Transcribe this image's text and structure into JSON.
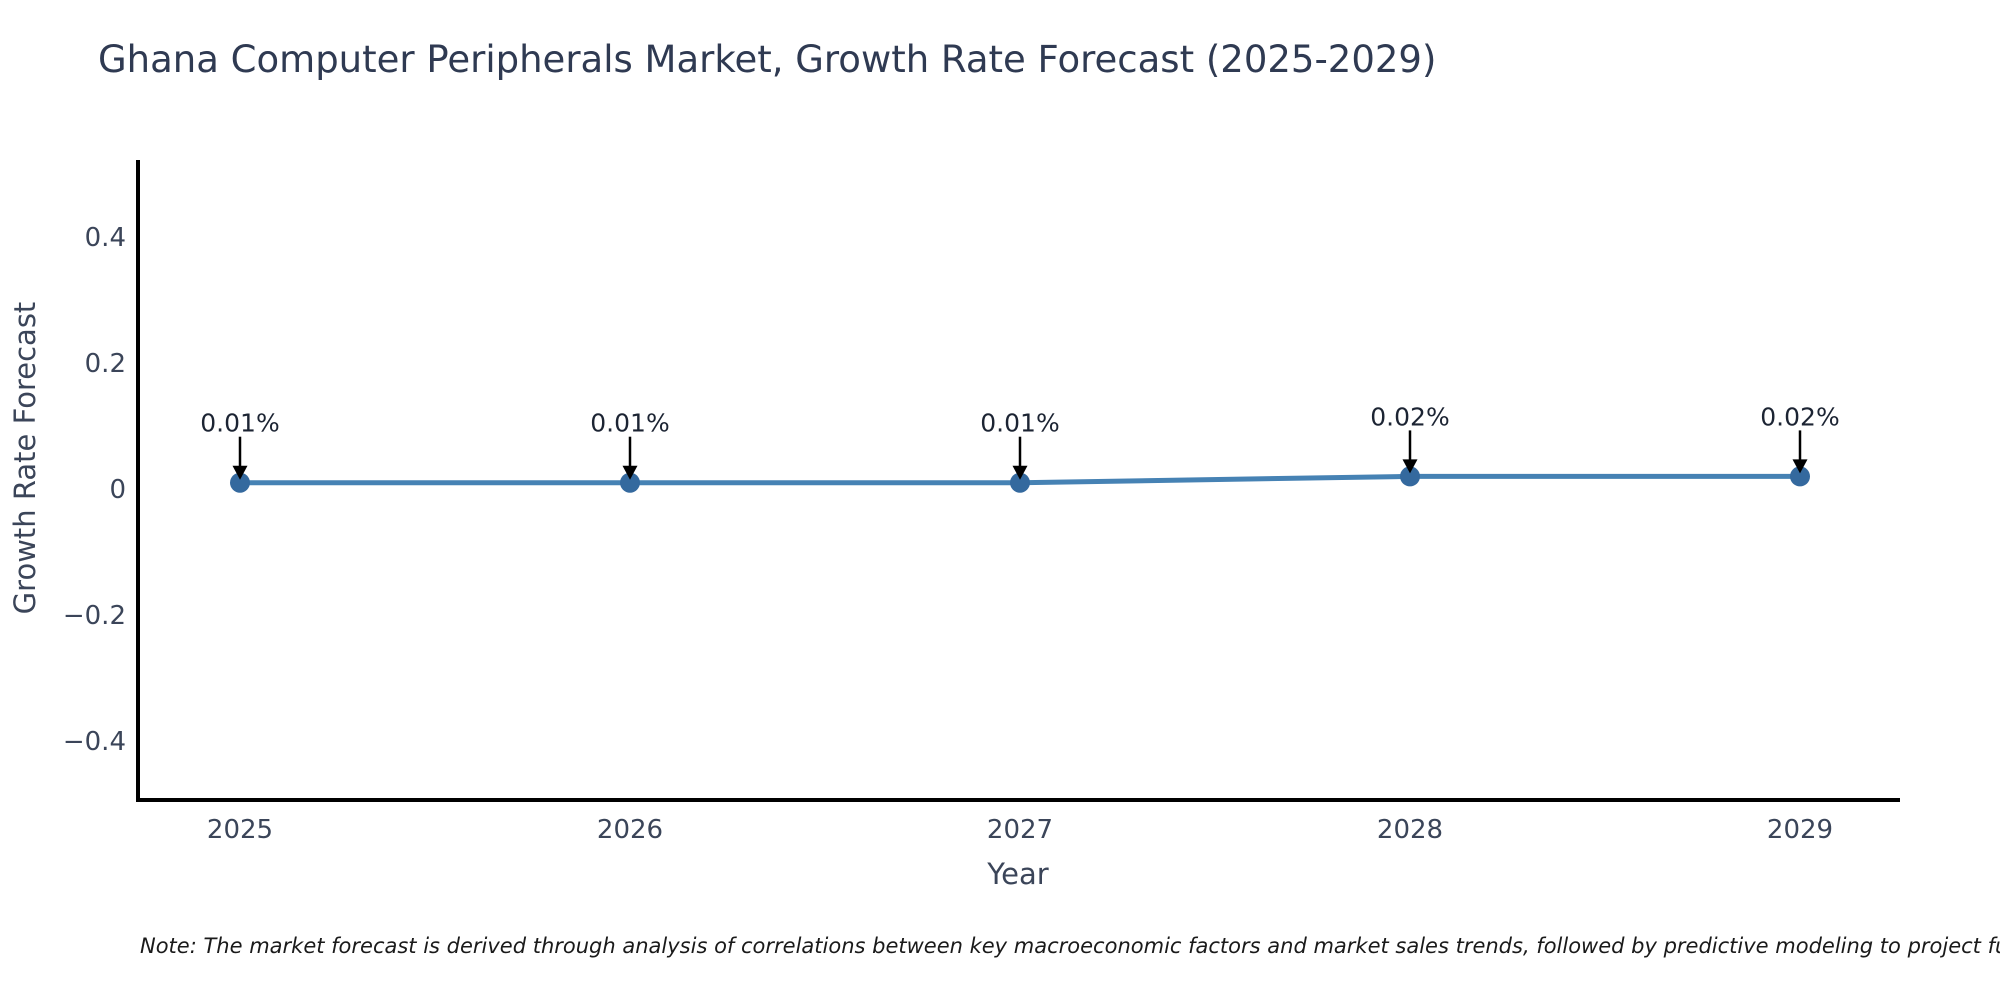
{
  "note": "Note: The market forecast is derived through analysis of correlations between key macroeconomic factors and market sales trends, followed by predictive modeling to project future sa",
  "colors": {
    "background": "#ffffff",
    "title": "#2f3a52",
    "tick_label": "#3b4559",
    "axis_label": "#3b4559",
    "spine": "#000000",
    "line": "#4682b4",
    "marker": "#34699e",
    "annotation_text": "#1c2433",
    "arrow": "#000000",
    "note_text": "#1a1a1a"
  },
  "chart_data": {
    "type": "line",
    "title": "Ghana Computer Peripherals Market, Growth Rate Forecast (2025-2029)",
    "xlabel": "Year",
    "ylabel": "Growth Rate Forecast",
    "x": [
      2025,
      2026,
      2027,
      2028,
      2029
    ],
    "series": [
      {
        "name": "Growth Rate Forecast",
        "values": [
          0.01,
          0.01,
          0.01,
          0.02,
          0.02
        ]
      }
    ],
    "point_labels": [
      "0.01%",
      "0.01%",
      "0.01%",
      "0.02%",
      "0.02%"
    ],
    "xtick_labels": [
      "2025",
      "2026",
      "2027",
      "2028",
      "2029"
    ],
    "yticks": [
      0.4,
      0.2,
      0,
      -0.2,
      -0.4
    ],
    "ytick_labels": [
      "0.4",
      "0.2",
      "0",
      "−0.2",
      "−0.4"
    ],
    "ylim": [
      -0.5,
      0.52
    ],
    "grid": false,
    "legend": "none",
    "annotations_arrows": true
  }
}
